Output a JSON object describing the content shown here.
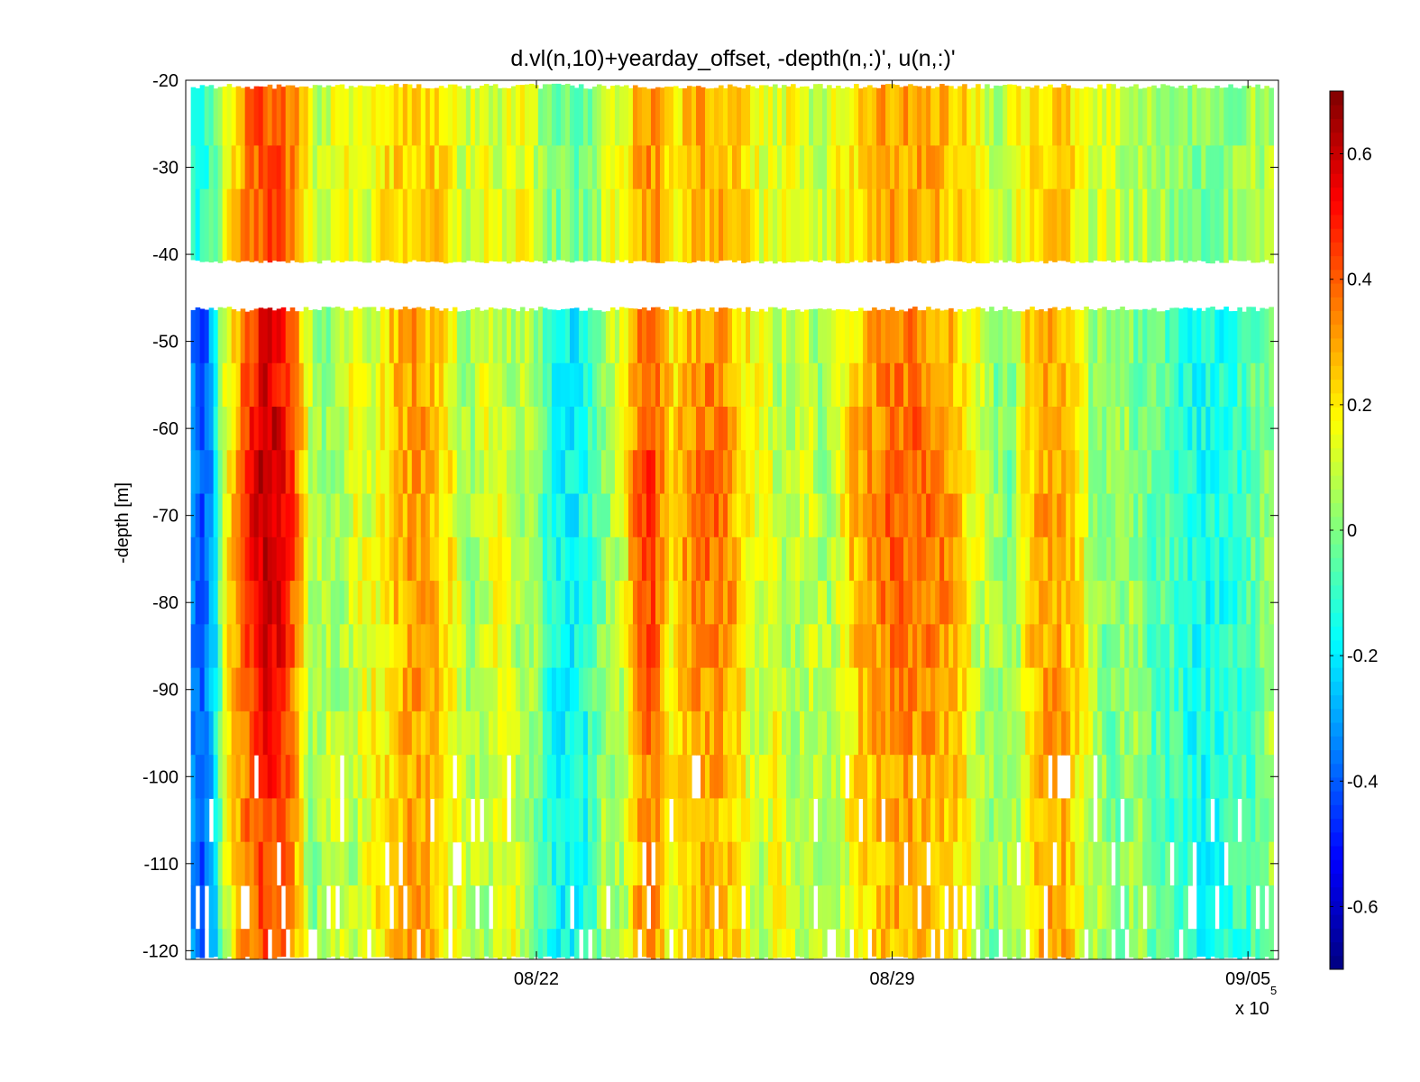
{
  "chart_data": {
    "type": "heatmap",
    "title": "d.vl(n,10)+yearday_offset, -depth(n,:)', u(n,:)'",
    "xlabel": "",
    "ylabel": "-depth [m]",
    "x_ticks": [
      "08/22",
      "08/29",
      "09/05"
    ],
    "x_tick_values": [
      6.9,
      13.9,
      20.9
    ],
    "x_exponent_label": "x 10",
    "x_exponent": "5",
    "xlim": [
      0,
      21.5
    ],
    "ylim": [
      -121,
      -20
    ],
    "y_ticks": [
      "-20",
      "-30",
      "-40",
      "-50",
      "-60",
      "-70",
      "-80",
      "-90",
      "-100",
      "-110",
      "-120"
    ],
    "y_tick_values": [
      -20,
      -30,
      -40,
      -50,
      -60,
      -70,
      -80,
      -90,
      -100,
      -110,
      -120
    ],
    "colorbar": {
      "colormap": "jet",
      "clim": [
        -0.7,
        0.7
      ],
      "ticks": [
        "-0.6",
        "-0.4",
        "-0.2",
        "0",
        "0.2",
        "0.4",
        "0.6"
      ],
      "tick_values": [
        -0.6,
        -0.4,
        -0.2,
        0,
        0.2,
        0.4,
        0.6
      ]
    },
    "depth_bins": [
      -25,
      -30,
      -35,
      -50,
      -55,
      -60,
      -65,
      -70,
      -75,
      -80,
      -85,
      -90,
      -95,
      -100,
      -105,
      -110,
      -115,
      -120
    ],
    "upper_range": [
      -20,
      -41
    ],
    "lower_range": [
      -46,
      -121
    ],
    "data_gap": [
      -41,
      -46
    ],
    "features": [
      {
        "name": "blue band at start",
        "x_start": 0.0,
        "x_end": 0.5,
        "value": -0.4
      },
      {
        "name": "strong positive streak",
        "x_start": 1.0,
        "x_end": 2.2,
        "value": 0.62
      },
      {
        "name": "positive feature near 08/20",
        "x_start": 3.8,
        "x_end": 5.2,
        "value": 0.3
      },
      {
        "name": "negative feature near 08/23",
        "x_start": 7.0,
        "x_end": 8.0,
        "value": -0.18
      },
      {
        "name": "positive streak near 08/25",
        "x_start": 8.8,
        "x_end": 9.3,
        "value": 0.45
      },
      {
        "name": "positive feature near 08/26",
        "x_start": 9.5,
        "x_end": 11.0,
        "value": 0.38
      },
      {
        "name": "positive feature near 08/30",
        "x_start": 12.8,
        "x_end": 15.5,
        "value": 0.4
      },
      {
        "name": "positive feature near 09/02",
        "x_start": 16.5,
        "x_end": 17.5,
        "value": 0.3
      },
      {
        "name": "negative feature near 09/04",
        "x_start": 19.0,
        "x_end": 21.0,
        "value": -0.15
      }
    ]
  }
}
